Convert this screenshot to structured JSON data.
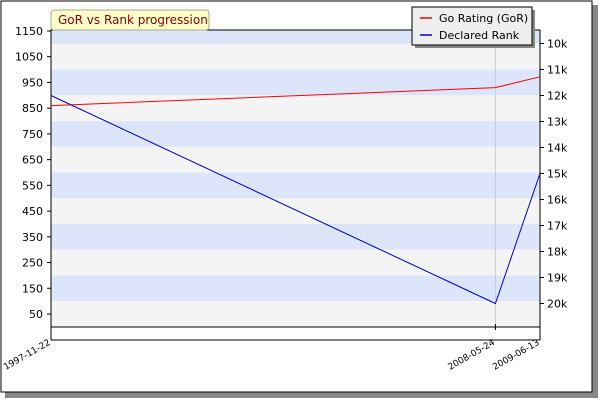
{
  "chart_data": {
    "type": "line",
    "title": "GoR vs Rank progression",
    "x": [
      "1997-11-22",
      "2008-05-24",
      "2009-06-13"
    ],
    "left_axis": {
      "ticks": [
        50,
        150,
        250,
        350,
        450,
        550,
        650,
        750,
        850,
        950,
        1050,
        1150
      ],
      "ylim": [
        0,
        1200
      ]
    },
    "right_axis": {
      "ticks": [
        "10k",
        "11k",
        "12k",
        "13k",
        "14k",
        "15k",
        "16k",
        "17k",
        "18k",
        "19k",
        "20k"
      ]
    },
    "series": [
      {
        "name": "Go Rating (GoR)",
        "axis": "left",
        "color": "#ff0000",
        "values": [
          860,
          930,
          972
        ]
      },
      {
        "name": "Declared Rank",
        "axis": "right",
        "color": "#0000cc",
        "values": [
          "12k",
          "20k",
          "15k"
        ]
      }
    ],
    "band_colors": [
      "#dde5fb",
      "#f4f4f4"
    ],
    "grid": true,
    "legend_position": "top-right"
  }
}
